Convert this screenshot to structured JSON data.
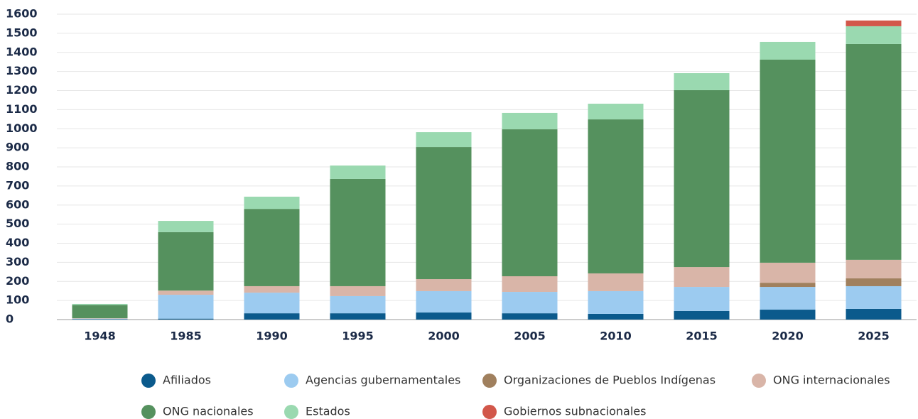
{
  "chart_data": {
    "type": "stacked-bar",
    "categories": [
      "1948",
      "1985",
      "1990",
      "1995",
      "2000",
      "2005",
      "2010",
      "2015",
      "2020",
      "2025"
    ],
    "series": [
      {
        "name": "Afiliados",
        "color": "#0b5a8c",
        "values": [
          2,
          5,
          33,
          33,
          37,
          33,
          30,
          45,
          52,
          56
        ]
      },
      {
        "name": "Agencias gubernamentales",
        "color": "#9ccbf0",
        "values": [
          3,
          125,
          108,
          90,
          112,
          112,
          119,
          126,
          119,
          119
        ]
      },
      {
        "name": "Organizaciones de Pueblos Indígenas",
        "color": "#a0805e",
        "values": [
          0,
          0,
          0,
          0,
          0,
          0,
          0,
          0,
          22,
          41
        ]
      },
      {
        "name": "ONG internacionales",
        "color": "#d9b5a8",
        "values": [
          2,
          22,
          34,
          52,
          63,
          82,
          93,
          104,
          105,
          97
        ]
      },
      {
        "name": "ONG nacionales",
        "color": "#55915e",
        "values": [
          70,
          306,
          405,
          562,
          692,
          770,
          807,
          927,
          1064,
          1131
        ]
      },
      {
        "name": "Estados",
        "color": "#9ad9b0",
        "values": [
          5,
          59,
          64,
          70,
          78,
          86,
          82,
          89,
          93,
          93
        ]
      },
      {
        "name": "Gobiernos subnacionales",
        "color": "#d2574a",
        "values": [
          0,
          0,
          0,
          0,
          0,
          0,
          0,
          0,
          0,
          30
        ]
      }
    ],
    "ylim": [
      0,
      1600
    ],
    "yticks": [
      0,
      100,
      200,
      300,
      400,
      500,
      600,
      700,
      800,
      900,
      1000,
      1100,
      1200,
      1300,
      1400,
      1500,
      1600
    ],
    "grid": true
  }
}
